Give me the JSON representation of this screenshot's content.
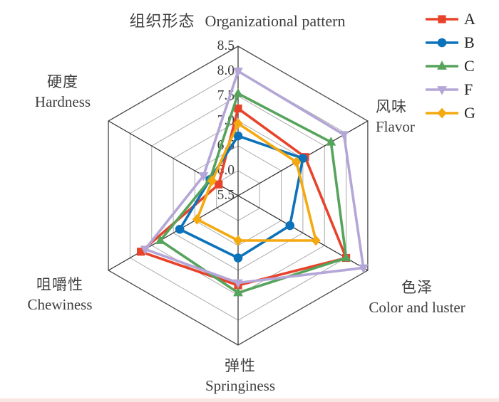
{
  "chart_data": {
    "type": "radar",
    "axes": [
      {
        "zh": "组织形态",
        "en": "Organizational pattern"
      },
      {
        "zh": "风味",
        "en": "Flavor"
      },
      {
        "zh": "色泽",
        "en": "Color and luster"
      },
      {
        "zh": "弹性",
        "en": "Springiness"
      },
      {
        "zh": "咀嚼性",
        "en": "Chewiness"
      },
      {
        "zh": "硬度",
        "en": "Hardness"
      }
    ],
    "radial_axis": {
      "min": 5.5,
      "max": 8.5,
      "step": 0.5,
      "tick_labels": [
        "5.5",
        "6.0",
        "6.5",
        "7.0",
        "7.5",
        "8.0",
        "8.5"
      ]
    },
    "series": [
      {
        "name": "A",
        "marker": "square",
        "color": "#e8432a",
        "values": [
          7.25,
          7.05,
          8.0,
          7.3,
          7.75,
          5.95
        ]
      },
      {
        "name": "B",
        "marker": "circle",
        "color": "#0c72b9",
        "values": [
          6.7,
          7.0,
          6.7,
          6.75,
          6.85,
          6.15
        ]
      },
      {
        "name": "C",
        "marker": "triangle-up",
        "color": "#56a35c",
        "values": [
          7.55,
          7.65,
          8.0,
          7.45,
          7.3,
          6.15
        ]
      },
      {
        "name": "F",
        "marker": "triangle-down",
        "color": "#b4a6d6",
        "values": [
          8.0,
          7.95,
          8.4,
          7.25,
          7.65,
          6.3
        ]
      },
      {
        "name": "G",
        "marker": "diamond",
        "color": "#f3a90f",
        "values": [
          6.95,
          6.85,
          7.3,
          6.4,
          6.45,
          6.1
        ]
      }
    ],
    "legend_position": "top-right",
    "grid": true
  },
  "colors": {
    "grid": "#a9a9a9",
    "outer_ring": "#4a4a4a",
    "spoke": "#2e2e2e",
    "tick_text": "#3c3c3c",
    "label_text": "#3f3f3f",
    "bottom_strip": "#f9e7e4"
  }
}
